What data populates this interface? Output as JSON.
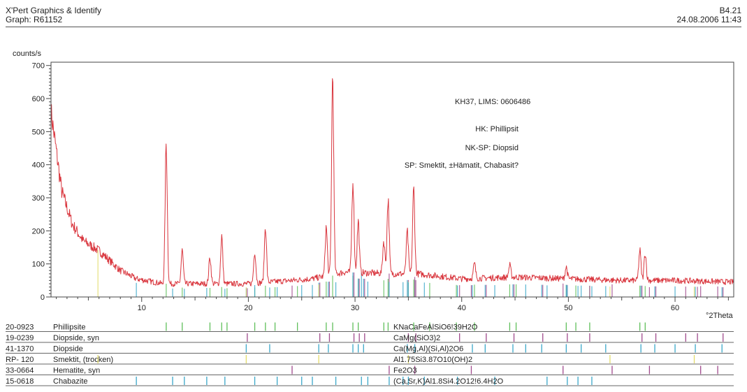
{
  "header": {
    "app_title": "X'Pert Graphics & Identify",
    "graph_label": "Graph: R61152",
    "doc_id": "B4.21",
    "datetime": "24.08.2006 11:43"
  },
  "chart_data": {
    "type": "line",
    "ylabel": "counts/s",
    "xlabel": "°2Theta",
    "xlim": [
      1.5,
      65.5
    ],
    "ylim": [
      0,
      710
    ],
    "x_ticks": [
      10,
      20,
      30,
      40,
      50,
      60
    ],
    "y_ticks": [
      0,
      100,
      200,
      300,
      400,
      500,
      600,
      700
    ],
    "line_color": "#d9363e",
    "annotations": [
      "KH37, LIMS: 0606486",
      "HK: Phillipsit",
      "NK-SP: Diopsid",
      "SP: Smektit, ±Hämatit, Chabasit?"
    ],
    "background": [
      [
        1.5,
        560
      ],
      [
        2.5,
        320
      ],
      [
        3.5,
        220
      ],
      [
        4.5,
        170
      ],
      [
        6,
        140
      ],
      [
        7,
        110
      ],
      [
        8,
        80
      ],
      [
        9.5,
        55
      ],
      [
        12,
        40
      ],
      [
        20,
        40
      ],
      [
        26,
        55
      ],
      [
        29,
        75
      ],
      [
        34,
        70
      ],
      [
        36,
        70
      ],
      [
        40,
        55
      ],
      [
        45,
        60
      ],
      [
        50,
        55
      ],
      [
        55,
        50
      ],
      [
        60,
        50
      ],
      [
        65.5,
        45
      ]
    ],
    "peaks": [
      [
        12.3,
        465
      ],
      [
        13.8,
        140
      ],
      [
        16.4,
        120
      ],
      [
        17.5,
        185
      ],
      [
        20.6,
        140
      ],
      [
        21.6,
        215
      ],
      [
        27.3,
        210
      ],
      [
        27.9,
        670
      ],
      [
        29.8,
        355
      ],
      [
        30.3,
        230
      ],
      [
        32.7,
        170
      ],
      [
        33.1,
        295
      ],
      [
        34.9,
        195
      ],
      [
        35.5,
        325
      ],
      [
        41.2,
        100
      ],
      [
        44.5,
        95
      ],
      [
        49.8,
        90
      ],
      [
        56.7,
        140
      ],
      [
        57.2,
        135
      ]
    ],
    "phases": [
      {
        "code": "20-0923",
        "name": "Phillipsite",
        "formula": "KNaCaFeAlSiO6!39H2O",
        "color": "#5fbf5a",
        "lines": [
          [
            12.3,
            100
          ],
          [
            13.8,
            35
          ],
          [
            16.4,
            30
          ],
          [
            17.5,
            45
          ],
          [
            18.0,
            25
          ],
          [
            20.6,
            30
          ],
          [
            21.6,
            50
          ],
          [
            22.5,
            20
          ],
          [
            24.6,
            20
          ],
          [
            27.3,
            40
          ],
          [
            27.9,
            90
          ],
          [
            29.8,
            70
          ],
          [
            30.3,
            45
          ],
          [
            32.7,
            35
          ],
          [
            33.1,
            50
          ],
          [
            35.5,
            45
          ],
          [
            37.0,
            20
          ],
          [
            39.5,
            20
          ],
          [
            41.2,
            25
          ],
          [
            44.5,
            20
          ],
          [
            45.1,
            20
          ],
          [
            49.8,
            25
          ],
          [
            50.7,
            20
          ],
          [
            52.0,
            20
          ],
          [
            56.7,
            30
          ],
          [
            57.2,
            25
          ]
        ]
      },
      {
        "code": "19-0239",
        "name": "Diopside, syn",
        "formula": "CaMg(SiO3)2",
        "color": "#a04a8c",
        "lines": [
          [
            19.9,
            25
          ],
          [
            26.7,
            40
          ],
          [
            27.6,
            35
          ],
          [
            29.9,
            100
          ],
          [
            30.4,
            45
          ],
          [
            30.9,
            45
          ],
          [
            35.0,
            40
          ],
          [
            35.7,
            40
          ],
          [
            39.8,
            20
          ],
          [
            42.3,
            20
          ],
          [
            44.9,
            20
          ],
          [
            47.6,
            20
          ],
          [
            49.9,
            25
          ],
          [
            52.0,
            20
          ],
          [
            56.9,
            30
          ],
          [
            58.2,
            20
          ],
          [
            61.0,
            20
          ],
          [
            62.1,
            20
          ],
          [
            64.5,
            20
          ]
        ]
      },
      {
        "code": "41-1370",
        "name": "Diopside",
        "formula": "Ca(Mg,Al)(Si,Al)2O6",
        "color": "#3aa7c9",
        "lines": [
          [
            19.8,
            25
          ],
          [
            22.0,
            20
          ],
          [
            26.6,
            40
          ],
          [
            27.5,
            35
          ],
          [
            29.8,
            100
          ],
          [
            30.3,
            45
          ],
          [
            30.8,
            45
          ],
          [
            34.9,
            40
          ],
          [
            35.6,
            40
          ],
          [
            41.0,
            20
          ],
          [
            42.2,
            20
          ],
          [
            44.8,
            20
          ],
          [
            46.0,
            20
          ],
          [
            47.5,
            20
          ],
          [
            49.8,
            25
          ],
          [
            51.2,
            20
          ],
          [
            53.5,
            20
          ],
          [
            56.8,
            30
          ],
          [
            58.1,
            20
          ],
          [
            60.0,
            20
          ],
          [
            61.9,
            20
          ],
          [
            64.4,
            20
          ]
        ]
      },
      {
        "code": "RP- 120",
        "name": "Smektit, (trocken)",
        "formula": "Al1.75Si3.87O10(OH)2",
        "color": "#e3dc6a",
        "lines": [
          [
            5.9,
            100
          ],
          [
            19.8,
            40
          ],
          [
            26.6,
            20
          ],
          [
            35.0,
            25
          ],
          [
            53.9,
            15
          ],
          [
            61.8,
            20
          ]
        ]
      },
      {
        "code": "33-0664",
        "name": "Hematite, syn",
        "formula": "Fe2O3",
        "color": "#a04a8c",
        "lines": [
          [
            24.1,
            30
          ],
          [
            33.2,
            100
          ],
          [
            35.6,
            70
          ],
          [
            40.9,
            20
          ],
          [
            49.5,
            40
          ],
          [
            54.1,
            45
          ],
          [
            57.6,
            10
          ],
          [
            62.4,
            30
          ],
          [
            64.0,
            30
          ]
        ]
      },
      {
        "code": "15-0618",
        "name": "Chabazite",
        "formula": "(Ca,Sr,K)Al1.8Si4.2O12!6.4H2O",
        "color": "#3aa7c9",
        "lines": [
          [
            9.5,
            50
          ],
          [
            12.9,
            20
          ],
          [
            14.0,
            15
          ],
          [
            16.1,
            30
          ],
          [
            17.8,
            15
          ],
          [
            20.6,
            70
          ],
          [
            22.7,
            20
          ],
          [
            25.0,
            30
          ],
          [
            26.0,
            25
          ],
          [
            28.2,
            20
          ],
          [
            30.6,
            100
          ],
          [
            31.2,
            20
          ],
          [
            33.2,
            20
          ],
          [
            34.5,
            20
          ],
          [
            35.0,
            20
          ],
          [
            36.5,
            20
          ],
          [
            39.6,
            15
          ],
          [
            43.1,
            15
          ],
          [
            48.0,
            15
          ],
          [
            49.9,
            20
          ],
          [
            50.9,
            15
          ],
          [
            52.2,
            15
          ]
        ]
      }
    ]
  }
}
